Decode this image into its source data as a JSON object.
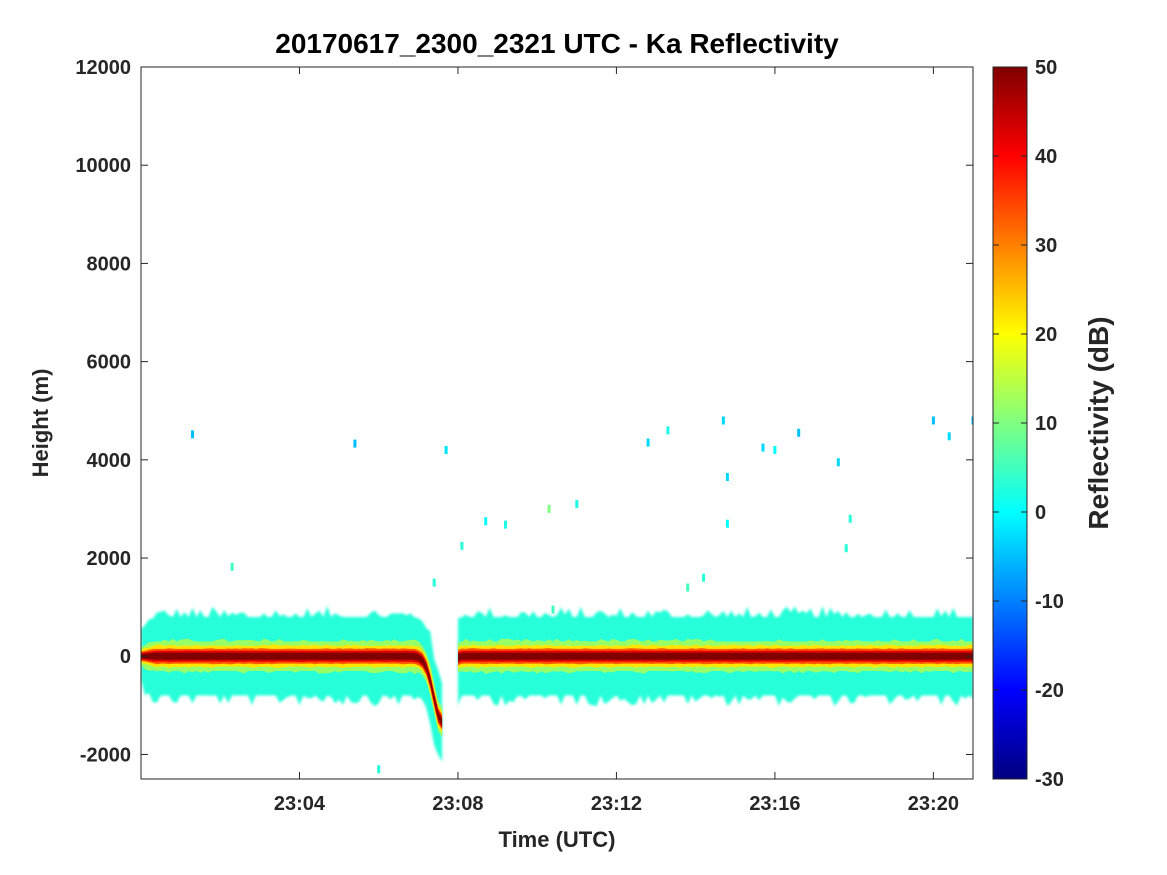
{
  "chart_data": {
    "type": "heatmap",
    "title": "20170617_2300_2321 UTC - Ka Reflectivity",
    "xlabel": "Time (UTC)",
    "ylabel": "Height (m)",
    "xlim": [
      "23:00",
      "23:21"
    ],
    "ylim": [
      -2500,
      12000
    ],
    "x_ticks": [
      "23:04",
      "23:08",
      "23:12",
      "23:16",
      "23:20"
    ],
    "y_ticks": [
      -2000,
      0,
      2000,
      4000,
      6000,
      8000,
      10000,
      12000
    ],
    "colorbar": {
      "label": "Reflectivity (dB)",
      "range": [
        -30,
        50
      ],
      "ticks": [
        -30,
        -20,
        -10,
        0,
        10,
        20,
        30,
        40,
        50
      ],
      "colormap": "jet"
    },
    "features": {
      "surface_echo_height_m": 0,
      "surface_echo_peak_dB": 50,
      "noise_band_height_range_m": [
        -800,
        800
      ],
      "noise_band_dB": 3,
      "dip": {
        "time": "23:07:36",
        "min_height_m": -1350
      },
      "gap_after_dip": [
        "23:07:40",
        "23:08:00"
      ]
    },
    "scattered_echoes": [
      {
        "time": "23:01:18",
        "height_m": 4520,
        "dB": -5
      },
      {
        "time": "23:02:18",
        "height_m": 1820,
        "dB": 5
      },
      {
        "time": "23:05:24",
        "height_m": 4330,
        "dB": -5
      },
      {
        "time": "23:06:00",
        "height_m": -2300,
        "dB": 3
      },
      {
        "time": "23:07:24",
        "height_m": 1500,
        "dB": 3
      },
      {
        "time": "23:07:42",
        "height_m": 4200,
        "dB": -2
      },
      {
        "time": "23:08:06",
        "height_m": 2250,
        "dB": 3
      },
      {
        "time": "23:08:42",
        "height_m": 2750,
        "dB": 0
      },
      {
        "time": "23:09:12",
        "height_m": 2680,
        "dB": 2
      },
      {
        "time": "23:10:18",
        "height_m": 3000,
        "dB": 10
      },
      {
        "time": "23:10:24",
        "height_m": 950,
        "dB": 5
      },
      {
        "time": "23:11:00",
        "height_m": 3100,
        "dB": 2
      },
      {
        "time": "23:12:48",
        "height_m": 4350,
        "dB": -3
      },
      {
        "time": "23:13:18",
        "height_m": 4600,
        "dB": 2
      },
      {
        "time": "23:13:48",
        "height_m": 1400,
        "dB": 5
      },
      {
        "time": "23:14:12",
        "height_m": 1600,
        "dB": 3
      },
      {
        "time": "23:14:42",
        "height_m": 4800,
        "dB": -3
      },
      {
        "time": "23:14:48",
        "height_m": 3650,
        "dB": -3
      },
      {
        "time": "23:14:48",
        "height_m": 2700,
        "dB": 0
      },
      {
        "time": "23:15:42",
        "height_m": 4250,
        "dB": -3
      },
      {
        "time": "23:16:00",
        "height_m": 4200,
        "dB": 0
      },
      {
        "time": "23:16:36",
        "height_m": 4550,
        "dB": -5
      },
      {
        "time": "23:17:36",
        "height_m": 3950,
        "dB": -3
      },
      {
        "time": "23:17:48",
        "height_m": 2200,
        "dB": 3
      },
      {
        "time": "23:17:54",
        "height_m": 2800,
        "dB": 3
      },
      {
        "time": "23:20:00",
        "height_m": 4800,
        "dB": -5
      },
      {
        "time": "23:20:24",
        "height_m": 4480,
        "dB": -3
      },
      {
        "time": "23:21:00",
        "height_m": 4800,
        "dB": -5
      }
    ]
  }
}
